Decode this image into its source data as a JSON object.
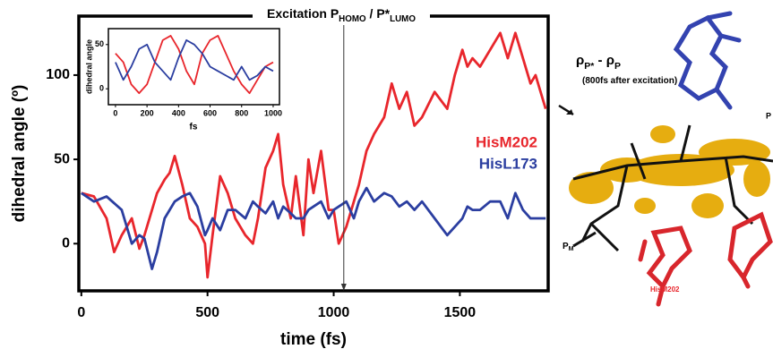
{
  "chart_data": [
    {
      "type": "line",
      "xlabel": "time (fs)",
      "ylabel": "dihedral angle (º)",
      "annotation": {
        "x": 1040,
        "text_parts": [
          "Excitation P",
          "HOMO",
          " / P*",
          "LUMO"
        ]
      },
      "x": [
        0,
        50,
        100,
        130,
        160,
        200,
        230,
        250,
        280,
        300,
        330,
        350,
        370,
        400,
        430,
        460,
        490,
        500,
        520,
        550,
        580,
        610,
        650,
        680,
        700,
        730,
        760,
        780,
        800,
        830,
        850,
        880,
        900,
        920,
        950,
        980,
        1000,
        1020,
        1050,
        1080,
        1100,
        1130,
        1160,
        1200,
        1230,
        1260,
        1290,
        1320,
        1350,
        1400,
        1450,
        1480,
        1510,
        1530,
        1550,
        1580,
        1620,
        1660,
        1690,
        1720,
        1750,
        1780,
        1800,
        1840
      ],
      "series": [
        {
          "name": "HisM202",
          "color": "#e8262c",
          "values": [
            30,
            28,
            15,
            -5,
            5,
            15,
            -3,
            5,
            20,
            30,
            38,
            42,
            52,
            35,
            15,
            10,
            0,
            -20,
            5,
            40,
            30,
            15,
            5,
            0,
            15,
            45,
            55,
            65,
            35,
            15,
            40,
            5,
            50,
            30,
            55,
            20,
            20,
            0,
            10,
            25,
            35,
            55,
            65,
            75,
            95,
            80,
            90,
            70,
            75,
            90,
            80,
            100,
            115,
            105,
            110,
            105,
            115,
            125,
            110,
            125,
            110,
            95,
            100,
            80
          ]
        },
        {
          "name": "HisL173",
          "color": "#2b3ea0",
          "values": [
            30,
            25,
            28,
            24,
            20,
            0,
            5,
            3,
            -15,
            -5,
            15,
            20,
            25,
            28,
            30,
            22,
            5,
            8,
            15,
            8,
            20,
            20,
            15,
            25,
            22,
            18,
            25,
            15,
            22,
            18,
            15,
            15,
            20,
            22,
            25,
            15,
            20,
            22,
            25,
            15,
            25,
            33,
            25,
            30,
            28,
            22,
            25,
            20,
            25,
            15,
            5,
            10,
            15,
            22,
            20,
            20,
            25,
            25,
            15,
            30,
            20,
            15,
            15,
            15
          ]
        }
      ],
      "xlim": [
        -10,
        1850
      ],
      "ylim": [
        -28,
        135
      ],
      "xticks": [
        0,
        500,
        1000,
        1500
      ],
      "yticks": [
        0,
        50,
        100
      ]
    },
    {
      "type": "line",
      "xlabel": "fs",
      "ylabel": "dihedral angle",
      "x": [
        0,
        50,
        100,
        150,
        200,
        250,
        300,
        350,
        400,
        450,
        500,
        550,
        600,
        650,
        700,
        750,
        800,
        850,
        900,
        950,
        1000
      ],
      "series": [
        {
          "name": null,
          "color": "#e8262c",
          "values": [
            40,
            30,
            5,
            -5,
            5,
            30,
            55,
            60,
            45,
            20,
            5,
            40,
            55,
            60,
            40,
            20,
            5,
            -5,
            10,
            25,
            30
          ]
        },
        {
          "name": null,
          "color": "#2b3ea0",
          "values": [
            30,
            10,
            25,
            45,
            50,
            30,
            20,
            10,
            35,
            55,
            50,
            40,
            25,
            20,
            15,
            10,
            25,
            10,
            15,
            25,
            20
          ]
        }
      ],
      "xlim": [
        -45,
        1040
      ],
      "ylim": [
        -18,
        68
      ],
      "xticks": [
        0,
        200,
        400,
        600,
        800,
        1000
      ],
      "yticks": [
        0,
        50
      ]
    }
  ],
  "figure": {
    "rho_parts": [
      "ρ",
      "P*",
      " - ρ",
      "P"
    ],
    "note": "(800fs after excitation)",
    "pm_parts": [
      "P",
      "M"
    ],
    "his_label": "HisM202",
    "p_label": "P"
  }
}
